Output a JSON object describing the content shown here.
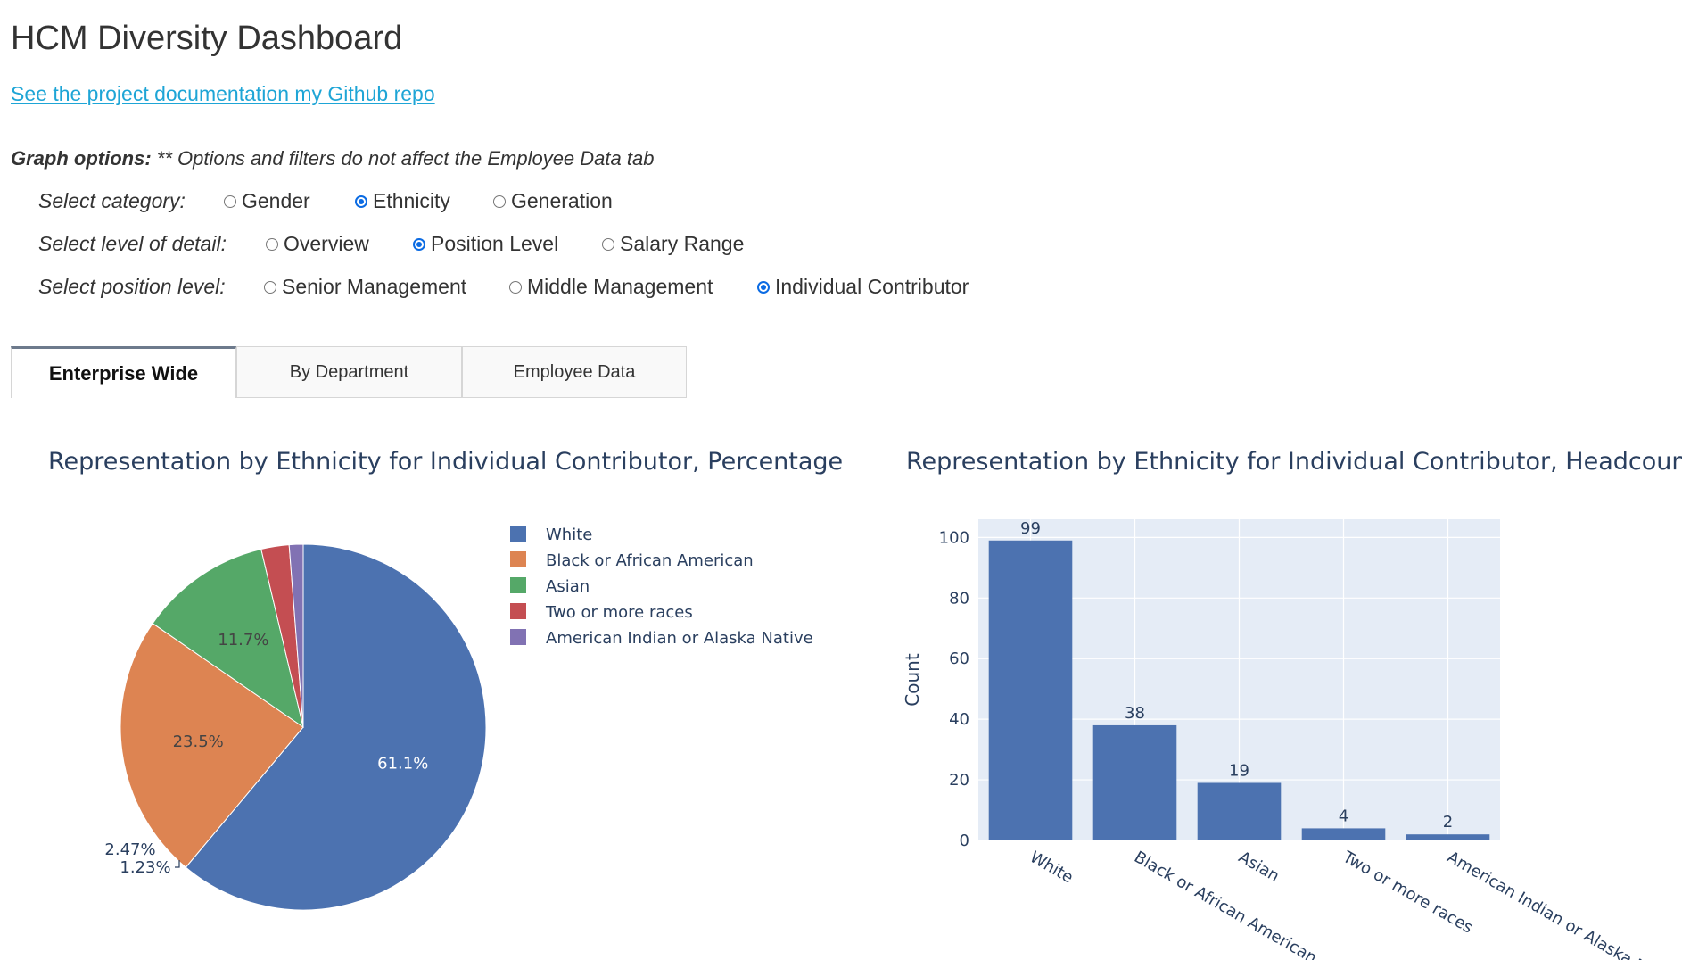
{
  "header": {
    "title": "HCM Diversity Dashboard",
    "doc_link": "See the project documentation my Github repo"
  },
  "options": {
    "heading_bold": "Graph options:",
    "heading_note": "** Options and filters do not affect the Employee Data tab",
    "category": {
      "label": "Select category:",
      "choices": [
        "Gender",
        "Ethnicity",
        "Generation"
      ],
      "selected": "Ethnicity"
    },
    "detail": {
      "label": "Select level of detail:",
      "choices": [
        "Overview",
        "Position Level",
        "Salary Range"
      ],
      "selected": "Position Level"
    },
    "position": {
      "label": "Select position level:",
      "choices": [
        "Senior Management",
        "Middle Management",
        "Individual Contributor"
      ],
      "selected": "Individual Contributor"
    }
  },
  "tabs": [
    {
      "label": "Enterprise Wide",
      "active": true
    },
    {
      "label": "By Department",
      "active": false
    },
    {
      "label": "Employee Data",
      "active": false
    }
  ],
  "colors": {
    "accent": "#0b6be3",
    "link": "#1ea5d6",
    "plot_bg": "#e5ecf6",
    "bar": "#4c72b0"
  },
  "chart_data": [
    {
      "type": "pie",
      "title": "Representation by Ethnicity for Individual Contributor, Percentage",
      "labels": [
        "White",
        "Black or African American",
        "Asian",
        "Two or more races",
        "American Indian or Alaska Native"
      ],
      "values": [
        61.1,
        23.5,
        11.7,
        2.47,
        1.23
      ],
      "value_labels": [
        "61.1%",
        "23.5%",
        "11.7%",
        "2.47%",
        "1.23%"
      ],
      "colors": [
        "#4c72b0",
        "#dd8452",
        "#55a868",
        "#c44e52",
        "#8172b3"
      ],
      "legend": "right"
    },
    {
      "type": "bar",
      "title": "Representation by Ethnicity for Individual Contributor, Headcount",
      "categories": [
        "White",
        "Black or African American",
        "Asian",
        "Two or more races",
        "American Indian or Alaska Native"
      ],
      "values": [
        99,
        38,
        19,
        4,
        2
      ],
      "ylabel": "Count",
      "xlabel": "",
      "ylim": [
        0,
        106
      ],
      "yticks": [
        0,
        20,
        40,
        60,
        80,
        100
      ],
      "grid": true
    }
  ]
}
